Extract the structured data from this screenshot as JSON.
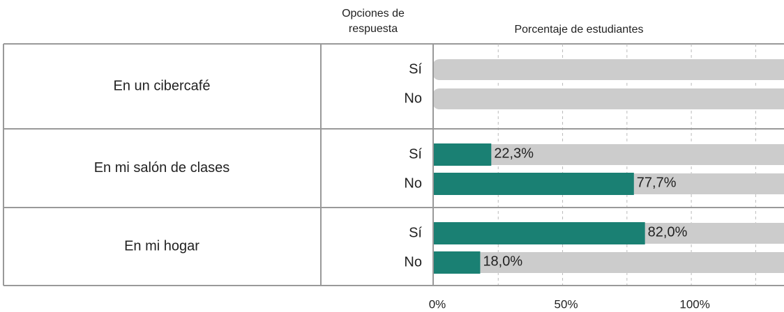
{
  "chart_data": {
    "type": "bar",
    "row_header": "Opciones de respuesta",
    "axis_title": "Porcentaje de estudiantes",
    "categories": [
      "En un cibercafé",
      "En mi salón de clases",
      "En mi hogar"
    ],
    "options": [
      "Sí",
      "No"
    ],
    "values": [
      [
        null,
        null
      ],
      [
        22.3,
        77.7
      ],
      [
        82.0,
        18.0
      ]
    ],
    "value_labels": [
      [
        null,
        null
      ],
      [
        "22,3%",
        "77,7%"
      ],
      [
        "82,0%",
        "18,0%"
      ]
    ],
    "color": "#1a8073",
    "track_color": "#cccccc",
    "xlim": [
      0,
      136
    ],
    "xticks": [
      {
        "value": 0,
        "label": "0%"
      },
      {
        "value": 50,
        "label": "50%"
      },
      {
        "value": 100,
        "label": "100%"
      }
    ],
    "minor_xticks": [
      25,
      75,
      125
    ],
    "grid": true
  }
}
